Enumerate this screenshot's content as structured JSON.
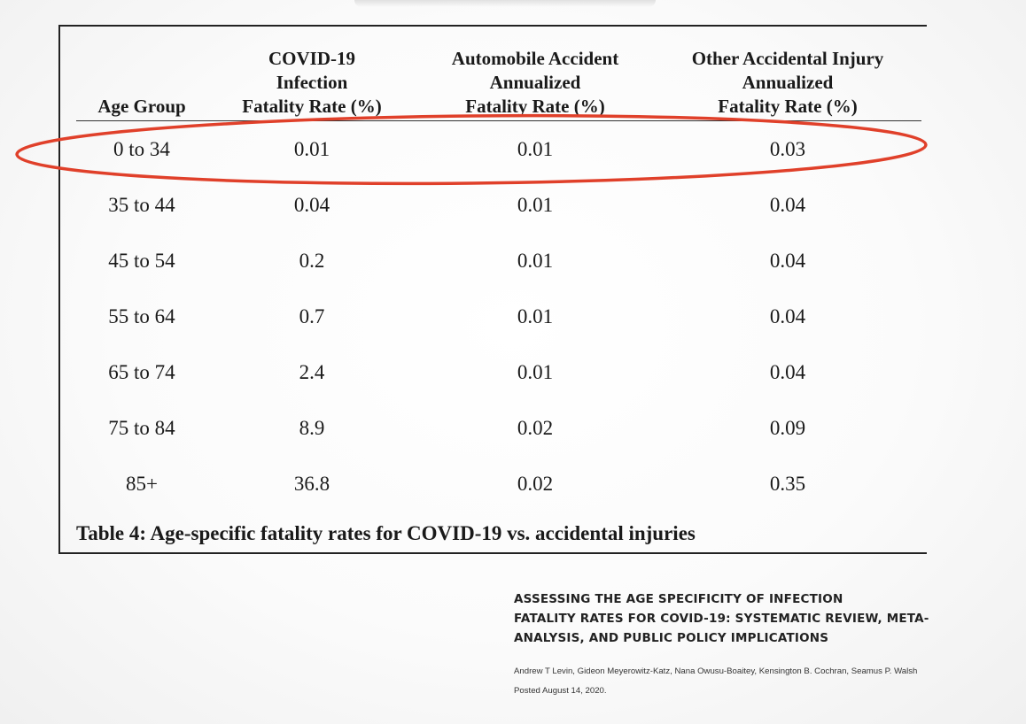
{
  "table": {
    "headers": [
      [
        "Age Group"
      ],
      [
        "COVID-19",
        "Infection",
        "Fatality Rate (%)"
      ],
      [
        "Automobile Accident",
        "Annualized",
        "Fatality Rate (%)"
      ],
      [
        "Other Accidental Injury",
        "Annualized",
        "Fatality Rate (%)"
      ]
    ],
    "rows": [
      [
        "0 to 34",
        "0.01",
        "0.01",
        "0.03"
      ],
      [
        "35 to 44",
        "0.04",
        "0.01",
        "0.04"
      ],
      [
        "45 to 54",
        "0.2",
        "0.01",
        "0.04"
      ],
      [
        "55 to 64",
        "0.7",
        "0.01",
        "0.04"
      ],
      [
        "65 to 74",
        "2.4",
        "0.01",
        "0.04"
      ],
      [
        "75 to 84",
        "8.9",
        "0.02",
        "0.09"
      ],
      [
        "85+",
        "36.8",
        "0.02",
        "0.35"
      ]
    ],
    "highlighted_row": 0,
    "caption": "Table 4: Age-specific fatality rates for COVID-19 vs. accidental injuries"
  },
  "paper": {
    "title_lines": [
      "ASSESSING THE AGE SPECIFICITY OF INFECTION",
      "FATALITY RATES FOR COVID-19: SYSTEMATIC REVIEW, META-",
      "ANALYSIS, AND PUBLIC POLICY IMPLICATIONS"
    ],
    "authors": "Andrew T Levin, Gideon Meyerowitz-Katz, Nana Owusu-Boaitey, Kensington B. Cochran, Seamus P. Walsh",
    "posted": "Posted August 14, 2020."
  },
  "colors": {
    "highlight": "#e0402a",
    "text": "#1a1a1a",
    "rule": "#222222"
  }
}
